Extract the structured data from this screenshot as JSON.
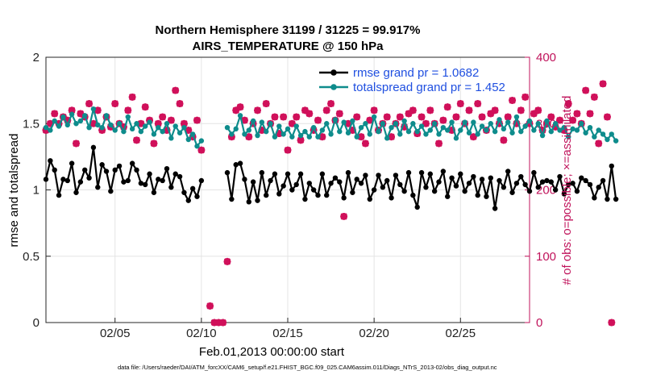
{
  "chart_data": {
    "type": "line",
    "title": "Northern Hemisphere 31199 / 31225 = 99.917%",
    "subtitle": "AIRS_TEMPERATURE @ 150 hPa",
    "xlabel": "Feb.01,2013 00:00:00 start",
    "ylabel": "rmse and totalspread",
    "ylabel_right": "# of obs: o=possible; ×=assimilated",
    "footnote": "data file: /Users/raeder/DAI/ATM_forcXX/CAM6_setup/f.e21.FHIST_BGC.f09_025.CAM6assim.011/Diags_NTrS_2013-02/obs_diag_output.nc",
    "xlim": [
      1.0,
      29.0
    ],
    "ylim": [
      0,
      2
    ],
    "ylim_right": [
      0,
      400
    ],
    "x_ticks": [
      5,
      10,
      15,
      20,
      25
    ],
    "x_tick_labels": [
      "02/05",
      "02/10",
      "02/15",
      "02/20",
      "02/25"
    ],
    "y_ticks": [
      0,
      0.5,
      1,
      1.5,
      2
    ],
    "y_tick_labels": [
      "0",
      "0.5",
      "1",
      "1.5",
      "2"
    ],
    "y_ticks_right": [
      0,
      100,
      200,
      300,
      400
    ],
    "y_tick_labels_right": [
      "0",
      "100",
      "200",
      "300",
      "400"
    ],
    "grid": true,
    "legend_position": "top-right",
    "x_start": 1.0,
    "x_step": 0.25,
    "series": [
      {
        "name": "rmse grand pr = 1.0682",
        "color": "#000000",
        "marker": "dot",
        "axis": "left",
        "values": [
          1.08,
          1.22,
          1.15,
          0.96,
          1.08,
          1.07,
          1.2,
          0.98,
          1.06,
          1.15,
          1.09,
          1.32,
          1.02,
          1.19,
          1.14,
          0.99,
          1.15,
          1.18,
          1.06,
          1.07,
          1.2,
          1.15,
          1.05,
          1.04,
          1.12,
          0.98,
          1.08,
          1.07,
          1.16,
          1.02,
          1.12,
          1.1,
          0.98,
          0.92,
          1.01,
          0.95,
          1.07,
          null,
          null,
          null,
          null,
          null,
          1.13,
          0.93,
          1.19,
          1.2,
          1.08,
          0.91,
          1.06,
          0.92,
          1.13,
          0.96,
          1.07,
          1.12,
          0.97,
          1.03,
          1.12,
          1.0,
          1.04,
          1.12,
          0.93,
          1.05,
          1.0,
          0.96,
          1.12,
          0.96,
          1.05,
          1.09,
          1.06,
          0.94,
          1.13,
          0.98,
          1.08,
          1.05,
          1.11,
          0.93,
          1.0,
          1.11,
          1.02,
          1.07,
          0.94,
          1.11,
          1.04,
          0.99,
          1.13,
          0.96,
          0.87,
          1.13,
          1.02,
          1.12,
          0.99,
          1.06,
          1.14,
          0.95,
          1.09,
          1.03,
          1.12,
          0.99,
          1.05,
          1.1,
          0.96,
          1.08,
          0.95,
          1.09,
          0.86,
          1.07,
          1.02,
          1.14,
          0.98,
          1.05,
          1.1,
          1.04,
          0.99,
          1.13,
          1.02,
          1.06,
          1.07,
          1.06,
          1.0,
          1.1,
          0.97,
          1.04,
          1.05,
          0.99,
          1.09,
          1.07,
          1.04,
          0.94,
          1.02,
          1.07,
          0.93,
          1.18,
          0.93
        ]
      },
      {
        "name": "totalspread grand pr = 1.452",
        "color": "#0e8c8c",
        "marker": "dot",
        "axis": "left",
        "values": [
          1.47,
          1.45,
          1.52,
          1.48,
          1.55,
          1.49,
          1.57,
          1.5,
          1.52,
          1.56,
          1.47,
          1.61,
          1.49,
          1.47,
          1.56,
          1.49,
          1.45,
          1.5,
          1.44,
          1.55,
          1.46,
          1.5,
          1.44,
          1.48,
          1.51,
          1.42,
          1.47,
          1.44,
          1.5,
          1.39,
          1.48,
          1.43,
          1.47,
          1.38,
          1.42,
          1.33,
          1.37,
          null,
          null,
          null,
          null,
          null,
          1.47,
          1.42,
          1.46,
          1.56,
          1.42,
          1.45,
          1.52,
          1.41,
          1.51,
          1.44,
          1.5,
          1.4,
          1.48,
          1.42,
          1.46,
          1.4,
          1.48,
          1.41,
          1.44,
          1.4,
          1.47,
          1.4,
          1.45,
          1.5,
          1.42,
          1.53,
          1.44,
          1.51,
          1.43,
          1.52,
          1.4,
          1.47,
          1.5,
          1.42,
          1.55,
          1.44,
          1.5,
          1.39,
          1.47,
          1.5,
          1.42,
          1.52,
          1.44,
          1.5,
          1.44,
          1.48,
          1.42,
          1.45,
          1.5,
          1.42,
          1.47,
          1.45,
          1.51,
          1.39,
          1.45,
          1.51,
          1.43,
          1.51,
          1.42,
          1.48,
          1.45,
          1.5,
          1.44,
          1.53,
          1.46,
          1.51,
          1.43,
          1.55,
          1.44,
          1.48,
          1.52,
          1.45,
          1.5,
          1.41,
          1.52,
          1.44,
          1.5,
          1.45,
          1.47,
          1.4,
          1.46,
          1.45,
          1.5,
          1.43,
          1.47,
          1.4,
          1.45,
          1.42,
          1.38,
          1.42,
          1.37
        ]
      },
      {
        "name": "# of obs assimilated",
        "color": "#d0105a",
        "marker": "x",
        "axis": "right",
        "values": [
          290,
          300,
          315,
          300,
          310,
          305,
          320,
          270,
          315,
          310,
          330,
          300,
          320,
          290,
          310,
          295,
          330,
          300,
          295,
          320,
          340,
          275,
          300,
          325,
          305,
          270,
          300,
          310,
          290,
          305,
          350,
          330,
          300,
          290,
          280,
          305,
          260,
          null,
          25,
          0,
          0,
          0,
          92,
          280,
          320,
          325,
          305,
          280,
          300,
          320,
          290,
          330,
          300,
          310,
          285,
          310,
          260,
          300,
          310,
          275,
          320,
          315,
          290,
          305,
          280,
          320,
          330,
          305,
          315,
          160,
          300,
          290,
          310,
          280,
          270,
          305,
          320,
          290,
          300,
          310,
          280,
          300,
          310,
          295,
          315,
          320,
          285,
          310,
          300,
          320,
          300,
          270,
          305,
          325,
          290,
          310,
          330,
          300,
          320,
          280,
          330,
          310,
          290,
          315,
          320,
          300,
          275,
          310,
          335,
          300,
          320,
          340,
          300,
          315,
          320,
          290,
          300,
          310,
          295,
          305,
          290,
          330,
          305,
          315,
          300,
          350,
          315,
          340,
          270,
          360,
          310,
          0
        ]
      },
      {
        "name": "# of obs possible",
        "color": "#d0105a",
        "marker": "circle",
        "axis": "right",
        "values": [
          290,
          300,
          315,
          300,
          310,
          305,
          320,
          270,
          315,
          310,
          330,
          300,
          320,
          290,
          310,
          295,
          330,
          300,
          295,
          320,
          340,
          275,
          300,
          325,
          305,
          270,
          300,
          310,
          290,
          305,
          350,
          330,
          300,
          290,
          280,
          305,
          260,
          null,
          25,
          0,
          0,
          0,
          92,
          280,
          320,
          325,
          305,
          280,
          300,
          320,
          290,
          330,
          300,
          310,
          285,
          310,
          260,
          300,
          310,
          275,
          320,
          315,
          290,
          305,
          280,
          320,
          330,
          305,
          315,
          160,
          300,
          290,
          310,
          280,
          270,
          305,
          320,
          290,
          300,
          310,
          280,
          300,
          310,
          295,
          315,
          320,
          285,
          310,
          300,
          320,
          300,
          270,
          305,
          325,
          290,
          310,
          330,
          300,
          320,
          280,
          330,
          310,
          290,
          315,
          320,
          300,
          275,
          310,
          335,
          300,
          320,
          340,
          300,
          315,
          320,
          290,
          300,
          310,
          295,
          305,
          290,
          330,
          305,
          315,
          300,
          350,
          315,
          340,
          270,
          360,
          310,
          0
        ]
      }
    ]
  }
}
